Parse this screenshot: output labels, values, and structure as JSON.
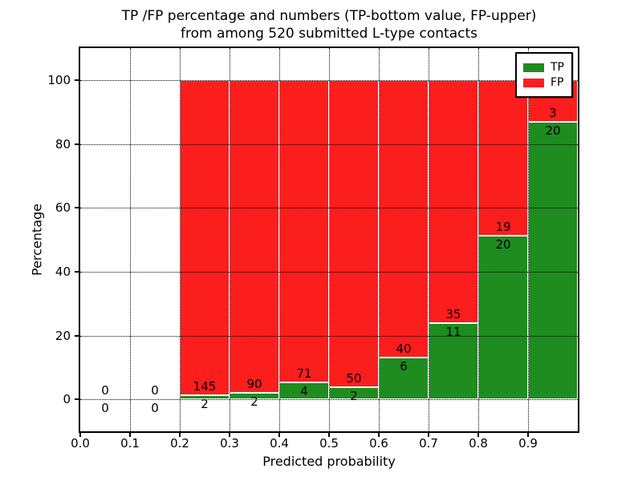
{
  "chart_data": {
    "type": "stacked_bar",
    "stacking": "percent",
    "title_line1": "TP /FP percentage and numbers (TP-bottom value, FP-upper)",
    "title_line2": "from among 520 submitted L-type contacts",
    "xlabel": "Predicted probability",
    "ylabel": "Percentage",
    "xlim": [
      0.0,
      1.0
    ],
    "ylim": [
      -10,
      110
    ],
    "xticks": [
      "0.0",
      "0.1",
      "0.2",
      "0.3",
      "0.4",
      "0.5",
      "0.6",
      "0.7",
      "0.8",
      "0.9"
    ],
    "yticks": [
      0,
      20,
      40,
      60,
      80,
      100
    ],
    "bin_width": 0.1,
    "grid": "dotted",
    "label_note": "FP count printed above TP/FP boundary, TP count below",
    "bins": [
      {
        "x_start": 0.0,
        "x_end": 0.1,
        "tp": 0,
        "fp": 0
      },
      {
        "x_start": 0.1,
        "x_end": 0.2,
        "tp": 0,
        "fp": 0
      },
      {
        "x_start": 0.2,
        "x_end": 0.3,
        "tp": 2,
        "fp": 145
      },
      {
        "x_start": 0.3,
        "x_end": 0.4,
        "tp": 2,
        "fp": 90
      },
      {
        "x_start": 0.4,
        "x_end": 0.5,
        "tp": 4,
        "fp": 71
      },
      {
        "x_start": 0.5,
        "x_end": 0.6,
        "tp": 2,
        "fp": 50
      },
      {
        "x_start": 0.6,
        "x_end": 0.7,
        "tp": 6,
        "fp": 40
      },
      {
        "x_start": 0.7,
        "x_end": 0.8,
        "tp": 11,
        "fp": 35
      },
      {
        "x_start": 0.8,
        "x_end": 0.9,
        "tp": 20,
        "fp": 19
      },
      {
        "x_start": 0.9,
        "x_end": 1.0,
        "tp": 20,
        "fp": 3
      }
    ],
    "series": [
      {
        "name": "TP",
        "color": "#1e8c1e",
        "values": [
          0,
          0,
          2,
          2,
          4,
          2,
          6,
          11,
          20,
          20
        ]
      },
      {
        "name": "FP",
        "color": "#fc1d1d",
        "values": [
          0,
          0,
          145,
          90,
          71,
          50,
          40,
          35,
          19,
          3
        ]
      }
    ],
    "legend": {
      "position": "upper right",
      "entries": [
        {
          "label": "TP",
          "color": "#1e8c1e"
        },
        {
          "label": "FP",
          "color": "#fc1d1d"
        }
      ]
    }
  }
}
